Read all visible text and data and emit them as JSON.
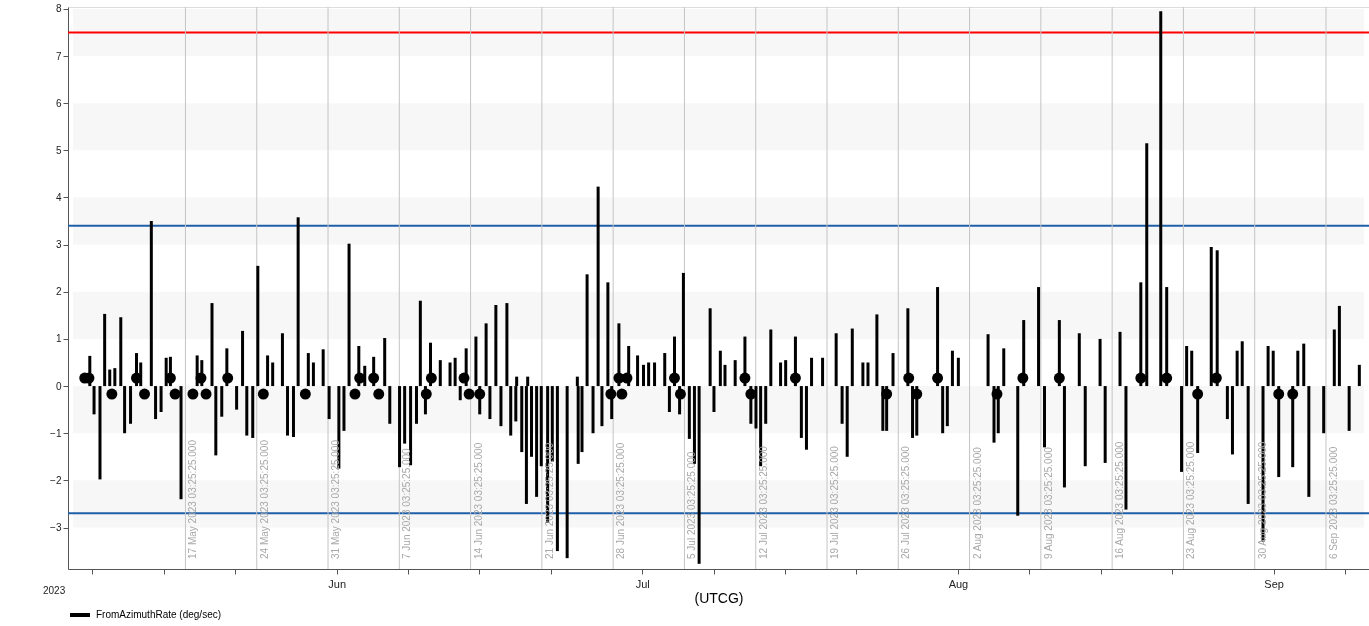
{
  "chart_data": {
    "type": "bar",
    "xlabel": "(UTCG)",
    "annotations": [
      "2023"
    ],
    "legend": "bottom left",
    "xlim": [
      "2023-05-06T02:24",
      "2023-09-09T21:00"
    ],
    "xticks": [
      {
        "value": "2023-05-08",
        "label": null
      },
      {
        "value": "2023-05-15",
        "label": null
      },
      {
        "value": "2023-05-22",
        "label": null
      },
      {
        "value": "2023-06-01",
        "label": "Jun"
      },
      {
        "value": "2023-06-08",
        "label": null
      },
      {
        "value": "2023-06-15",
        "label": null
      },
      {
        "value": "2023-06-22",
        "label": null
      },
      {
        "value": "2023-07-01",
        "label": "Jul"
      },
      {
        "value": "2023-07-08",
        "label": null
      },
      {
        "value": "2023-07-15",
        "label": null
      },
      {
        "value": "2023-07-22",
        "label": null
      },
      {
        "value": "2023-08-01",
        "label": "Aug"
      },
      {
        "value": "2023-08-08",
        "label": null
      },
      {
        "value": "2023-08-15",
        "label": null
      },
      {
        "value": "2023-08-22",
        "label": null
      },
      {
        "value": "2023-09-01",
        "label": "Sep"
      },
      {
        "value": "2023-09-08",
        "label": null
      }
    ],
    "ylim": [
      -3.88,
      8.04
    ],
    "yticks": [
      -3,
      -2,
      -1,
      0,
      1,
      2,
      3,
      4,
      5,
      6,
      7,
      8
    ],
    "bands": [
      {
        "axis": "y",
        "from": 7,
        "to": 8,
        "color": "#f7f7f7"
      },
      {
        "axis": "y",
        "from": 5,
        "to": 6,
        "color": "#f7f7f7"
      },
      {
        "axis": "y",
        "from": 3,
        "to": 4,
        "color": "#f7f7f7"
      },
      {
        "axis": "y",
        "from": 1,
        "to": 2,
        "color": "#f7f7f7"
      },
      {
        "axis": "y",
        "from": -1,
        "to": 0,
        "color": "#f7f7f7"
      },
      {
        "axis": "y",
        "from": -3,
        "to": -2,
        "color": "#f7f7f7"
      }
    ],
    "ref_lines": [
      {
        "axis": "y",
        "value": 7.5,
        "color": "#ff0000"
      },
      {
        "axis": "y",
        "value": 3.4,
        "color": "#1f5fa8"
      },
      {
        "axis": "y",
        "value": -2.7,
        "color": "#1f5fa8"
      },
      {
        "axis": "x",
        "value": "2023-05-17T03:25:25",
        "label": "17 May 2023 03:25:25.000",
        "color": "#c4c4c4"
      },
      {
        "axis": "x",
        "value": "2023-05-24T03:25:25",
        "label": "24 May 2023 03:25:25.000",
        "color": "#c4c4c4"
      },
      {
        "axis": "x",
        "value": "2023-05-31T03:25:25",
        "label": "31 May 2023 03:25:25.000",
        "color": "#c4c4c4"
      },
      {
        "axis": "x",
        "value": "2023-06-07T03:25:25",
        "label": "7 Jun 2023 03:25:25.000",
        "color": "#c4c4c4"
      },
      {
        "axis": "x",
        "value": "2023-06-14T03:25:25",
        "label": "14 Jun 2023 03:25:25.000",
        "color": "#c4c4c4"
      },
      {
        "axis": "x",
        "value": "2023-06-21T03:25:25",
        "label": "21 Jun 2023 03:25:25.000",
        "color": "#c4c4c4"
      },
      {
        "axis": "x",
        "value": "2023-06-28T03:25:25",
        "label": "28 Jun 2023 03:25:25.000",
        "color": "#c4c4c4"
      },
      {
        "axis": "x",
        "value": "2023-07-05T03:25:25",
        "label": "5 Jul 2023 03:25:25.000",
        "color": "#c4c4c4"
      },
      {
        "axis": "x",
        "value": "2023-07-12T03:25:25",
        "label": "12 Jul 2023 03:25:25.000",
        "color": "#c4c4c4"
      },
      {
        "axis": "x",
        "value": "2023-07-19T03:25:25",
        "label": "19 Jul 2023 03:25:25.000",
        "color": "#c4c4c4"
      },
      {
        "axis": "x",
        "value": "2023-07-26T03:25:25",
        "label": "26 Jul 2023 03:25:25.000",
        "color": "#c4c4c4"
      },
      {
        "axis": "x",
        "value": "2023-08-02T03:25:25",
        "label": "2 Aug 2023 03:25:25.000",
        "color": "#c4c4c4"
      },
      {
        "axis": "x",
        "value": "2023-08-09T03:25:25",
        "label": "9 Aug 2023 03:25:25.000",
        "color": "#c4c4c4"
      },
      {
        "axis": "x",
        "value": "2023-08-16T03:25:25",
        "label": "16 Aug 2023 03:25:25.000",
        "color": "#c4c4c4"
      },
      {
        "axis": "x",
        "value": "2023-08-23T03:25:25",
        "label": "23 Aug 2023 03:25:25.000",
        "color": "#c4c4c4"
      },
      {
        "axis": "x",
        "value": "2023-08-30T03:25:25",
        "label": "30 Aug 2023 03:25:25.000",
        "color": "#c4c4c4"
      },
      {
        "axis": "x",
        "value": "2023-09-06T03:25:25",
        "label": "6 Sep 2023 03:25:25.000",
        "color": "#c4c4c4"
      }
    ],
    "series": [
      {
        "name": "FromAzimuthRate (deg/sec)",
        "color": "#000000",
        "x": [
          "2023-05-07T18:00",
          "2023-05-08T04:00",
          "2023-05-08T18:00",
          "2023-05-09T05:00",
          "2023-05-09T17:00",
          "2023-05-10T05:00",
          "2023-05-10T19:00",
          "2023-05-11T04:00",
          "2023-05-11T18:00",
          "2023-05-12T08:00",
          "2023-05-12T18:00",
          "2023-05-13T19:00",
          "2023-05-14T05:00",
          "2023-05-14T18:00",
          "2023-05-15T06:00",
          "2023-05-15T16:00",
          "2023-05-16T17:00",
          "2023-05-18T07:00",
          "2023-05-18T18:00",
          "2023-05-19T18:00",
          "2023-05-20T03:00",
          "2023-05-20T17:00",
          "2023-05-21T05:00",
          "2023-05-22T04:00",
          "2023-05-22T18:00",
          "2023-05-23T04:00",
          "2023-05-23T18:00",
          "2023-05-24T06:00",
          "2023-05-25T05:00",
          "2023-05-25T17:00",
          "2023-05-26T16:00",
          "2023-05-27T04:00",
          "2023-05-27T18:00",
          "2023-05-28T05:00",
          "2023-05-29T05:00",
          "2023-05-29T17:00",
          "2023-05-30T16:00",
          "2023-05-31T06:00",
          "2023-06-01T05:00",
          "2023-06-01T17:00",
          "2023-06-02T05:00",
          "2023-06-03T04:00",
          "2023-06-03T18:00",
          "2023-06-04T15:00",
          "2023-06-05T17:00",
          "2023-06-06T05:00",
          "2023-06-07T04:00",
          "2023-06-07T16:00",
          "2023-06-08T06:00",
          "2023-06-08T20:00",
          "2023-06-09T05:00",
          "2023-06-09T17:00",
          "2023-06-10T05:00",
          "2023-06-11T04:00",
          "2023-06-12T03:00",
          "2023-06-12T15:00",
          "2023-06-13T03:00",
          "2023-06-13T17:00",
          "2023-06-14T16:00",
          "2023-06-15T01:00",
          "2023-06-15T16:00",
          "2023-06-16T01:00",
          "2023-06-16T15:00",
          "2023-06-17T03:00",
          "2023-06-17T17:00",
          "2023-06-18T02:00",
          "2023-06-18T14:00",
          "2023-06-18T16:00",
          "2023-06-19T04:00",
          "2023-06-19T15:00",
          "2023-06-19T18:00",
          "2023-06-20T03:00",
          "2023-06-20T15:00",
          "2023-06-21T02:00",
          "2023-06-21T17:00",
          "2023-06-22T04:00",
          "2023-06-22T16:00",
          "2023-06-23T15:00",
          "2023-06-24T15:00",
          "2023-06-24T17:00",
          "2023-06-25T02:00",
          "2023-06-25T14:00",
          "2023-06-26T04:00",
          "2023-06-26T16:00",
          "2023-06-27T01:00",
          "2023-06-27T15:00",
          "2023-06-28T00:00",
          "2023-06-28T17:00",
          "2023-06-29T16:00",
          "2023-06-30T13:00",
          "2023-07-01T03:00",
          "2023-07-01T15:00",
          "2023-07-02T05:00",
          "2023-07-03T05:00",
          "2023-07-03T16:00",
          "2023-07-04T04:00",
          "2023-07-04T16:00",
          "2023-07-05T01:00",
          "2023-07-05T15:00",
          "2023-07-06T03:00",
          "2023-07-06T14:00",
          "2023-07-07T16:00",
          "2023-07-08T01:00",
          "2023-07-08T16:00",
          "2023-07-09T03:00",
          "2023-07-10T03:00",
          "2023-07-11T02:00",
          "2023-07-11T16:00",
          "2023-07-12T04:00",
          "2023-07-12T15:00",
          "2023-07-13T03:00",
          "2023-07-13T15:00",
          "2023-07-14T14:00",
          "2023-07-15T02:00",
          "2023-07-16T01:00",
          "2023-07-16T15:00",
          "2023-07-17T03:00",
          "2023-07-17T15:00",
          "2023-07-18T17:00",
          "2023-07-20T01:00",
          "2023-07-20T15:00",
          "2023-07-21T03:00",
          "2023-07-21T15:00",
          "2023-07-22T16:00",
          "2023-07-23T04:00",
          "2023-07-24T01:00",
          "2023-07-24T15:00",
          "2023-07-25T00:00",
          "2023-07-25T15:00",
          "2023-07-27T02:00",
          "2023-07-27T13:00",
          "2023-07-27T23:00",
          "2023-07-30T00:00",
          "2023-07-30T12:00",
          "2023-07-30T23:00",
          "2023-07-31T11:00",
          "2023-08-01T01:00",
          "2023-08-03T23:00",
          "2023-08-04T13:00",
          "2023-08-04T23:00",
          "2023-08-05T12:00",
          "2023-08-06T21:00",
          "2023-08-07T11:00",
          "2023-08-08T22:00",
          "2023-08-09T12:00",
          "2023-08-10T23:00",
          "2023-08-11T11:00",
          "2023-08-12T22:00",
          "2023-08-13T12:00",
          "2023-08-14T23:00",
          "2023-08-15T11:00",
          "2023-08-16T22:00",
          "2023-08-17T12:00",
          "2023-08-18T23:00",
          "2023-08-19T13:00",
          "2023-08-20T22:00",
          "2023-08-21T12:00",
          "2023-08-22T23:00",
          "2023-08-23T11:00",
          "2023-08-23T23:00",
          "2023-08-24T13:00",
          "2023-08-25T21:00",
          "2023-08-26T11:00",
          "2023-08-27T11:00",
          "2023-08-27T23:00",
          "2023-08-28T10:00",
          "2023-08-28T22:00",
          "2023-08-29T12:00",
          "2023-08-30T23:00",
          "2023-08-31T11:00",
          "2023-08-31T23:00",
          "2023-09-01T12:00",
          "2023-09-02T21:00",
          "2023-09-03T09:00",
          "2023-09-03T23:00",
          "2023-09-04T11:00",
          "2023-09-05T22:00",
          "2023-09-06T23:00",
          "2023-09-07T11:00",
          "2023-09-08T10:00",
          "2023-09-09T10:00"
        ],
        "values": [
          0.64,
          -0.6,
          -1.98,
          1.53,
          0.35,
          0.38,
          1.46,
          -1.0,
          -0.8,
          0.7,
          0.5,
          3.5,
          -0.7,
          -0.55,
          0.6,
          0.62,
          -2.4,
          0.65,
          0.55,
          1.76,
          -1.47,
          -0.65,
          0.8,
          -0.5,
          1.17,
          -1.05,
          -1.1,
          2.55,
          0.65,
          0.5,
          1.12,
          -1.05,
          -1.08,
          3.58,
          0.7,
          0.5,
          0.78,
          -0.7,
          -1.75,
          -0.95,
          3.02,
          0.85,
          0.43,
          0.62,
          1.02,
          -0.8,
          -1.72,
          -1.22,
          -1.68,
          -0.8,
          1.81,
          -0.6,
          0.92,
          0.55,
          0.5,
          0.6,
          -0.3,
          0.8,
          1.05,
          -0.6,
          1.33,
          -0.7,
          1.72,
          -0.85,
          1.76,
          -1.05,
          -0.75,
          0.2,
          -1.4,
          -2.5,
          0.2,
          -1.5,
          -2.35,
          -1.7,
          -2.9,
          -1.6,
          -3.5,
          -3.65,
          0.2,
          -1.65,
          -1.4,
          2.37,
          -1.0,
          4.23,
          -0.85,
          2.2,
          -0.7,
          1.33,
          0.85,
          0.65,
          0.45,
          0.5,
          0.5,
          0.7,
          -0.55,
          1.05,
          -0.6,
          2.4,
          -1.12,
          -1.65,
          -3.77,
          1.65,
          -0.55,
          0.75,
          0.45,
          0.55,
          1.05,
          -0.8,
          -0.9,
          -1.7,
          -0.8,
          1.2,
          0.5,
          0.55,
          1.05,
          -1.1,
          -1.35,
          0.6,
          0.6,
          1.12,
          -0.8,
          -1.5,
          1.22,
          0.5,
          0.5,
          1.52,
          -0.95,
          -0.95,
          0.7,
          1.65,
          -1.1,
          -1.05,
          2.1,
          -1.0,
          -0.85,
          0.75,
          0.6,
          1.1,
          -1.2,
          -1.0,
          0.8,
          -2.75,
          1.4,
          2.1,
          -1.3,
          1.4,
          -2.15,
          1.12,
          -1.7,
          1.0,
          -1.63,
          1.15,
          -2.62,
          2.2,
          5.15,
          7.95,
          2.1,
          -1.82,
          0.85,
          0.75,
          -1.42,
          2.95,
          2.88,
          -0.7,
          -1.45,
          0.75,
          0.95,
          -2.5,
          -3.3,
          0.85,
          0.75,
          -1.93,
          -1.72,
          0.75,
          0.9,
          -2.35,
          -1.0,
          1.2,
          1.7,
          -0.95,
          0.45
        ]
      },
      {
        "type": "scatter",
        "color": "#000000",
        "marker": "circle",
        "x": [
          "2023-05-07T06:00",
          "2023-05-07T16:00",
          "2023-05-09T22:00",
          "2023-05-12T08:00",
          "2023-05-13T03:00",
          "2023-05-15T16:00",
          "2023-05-16T03:00",
          "2023-05-17T21:00",
          "2023-05-18T16:00",
          "2023-05-19T04:00",
          "2023-05-21T07:00",
          "2023-05-24T19:00",
          "2023-05-28T22:00",
          "2023-06-02T19:00",
          "2023-06-03T06:00",
          "2023-06-04T15:00",
          "2023-06-05T03:00",
          "2023-06-09T19:00",
          "2023-06-10T07:00",
          "2023-06-13T12:00",
          "2023-06-14T00:00",
          "2023-06-15T01:00",
          "2023-06-27T22:00",
          "2023-06-28T17:00",
          "2023-06-29T00:00",
          "2023-06-29T12:00",
          "2023-07-04T04:00",
          "2023-07-04T18:00",
          "2023-07-11T02:00",
          "2023-07-11T16:00",
          "2023-07-16T01:00",
          "2023-07-25T00:00",
          "2023-07-27T04:00",
          "2023-07-27T23:00",
          "2023-07-30T00:00",
          "2023-08-04T20:00",
          "2023-08-07T09:00",
          "2023-08-10T23:00",
          "2023-08-18T23:00",
          "2023-08-21T12:00",
          "2023-08-24T13:00",
          "2023-08-26T09:00",
          "2023-09-01T12:00",
          "2023-09-02T21:00"
        ],
        "values": [
          0.17,
          0.17,
          -0.17,
          0.17,
          -0.17,
          0.17,
          -0.17,
          -0.17,
          0.17,
          -0.17,
          0.17,
          -0.17,
          -0.17,
          -0.17,
          0.17,
          0.17,
          -0.17,
          -0.17,
          0.17,
          0.17,
          -0.17,
          -0.17,
          -0.17,
          0.17,
          -0.17,
          0.17,
          0.17,
          -0.17,
          0.17,
          -0.17,
          0.17,
          -0.17,
          0.17,
          -0.17,
          0.17,
          -0.17,
          0.17,
          0.17,
          0.17,
          0.17,
          -0.17,
          0.17,
          -0.17,
          -0.17
        ]
      }
    ]
  }
}
